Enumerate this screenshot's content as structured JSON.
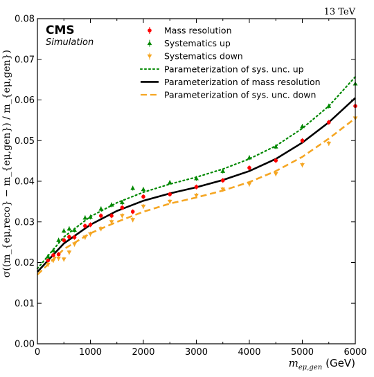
{
  "chart_data": {
    "type": "scatter",
    "energy_label": "13 TeV",
    "experiment": "CMS",
    "subtitle": "Simulation",
    "xlabel_math": "m",
    "xlabel_sub": "eμ,gen",
    "xlabel_unit": "(GeV)",
    "ylabel": "σ((m_{eμ,reco} − m_{eμ,gen}) / m_{eμ,gen})",
    "xlim": [
      0,
      6000
    ],
    "ylim": [
      0.0,
      0.08
    ],
    "xticks": [
      "0",
      "1000",
      "2000",
      "3000",
      "4000",
      "5000",
      "6000"
    ],
    "yticks": [
      "0.00",
      "0.01",
      "0.02",
      "0.03",
      "0.04",
      "0.05",
      "0.06",
      "0.07",
      "0.08"
    ],
    "legend_position": "top-center",
    "series": [
      {
        "name": "Mass resolution",
        "kind": "points",
        "marker": "circle",
        "color": "#ff0000",
        "x": [
          200,
          300,
          400,
          500,
          600,
          700,
          900,
          1000,
          1200,
          1400,
          1600,
          1800,
          2000,
          2500,
          3000,
          3500,
          4000,
          4500,
          5000,
          5500,
          6000
        ],
        "y": [
          0.0205,
          0.0218,
          0.022,
          0.0255,
          0.0263,
          0.0262,
          0.029,
          0.0293,
          0.0315,
          0.0315,
          0.0335,
          0.0325,
          0.0362,
          0.0368,
          0.0386,
          0.0402,
          0.0433,
          0.0451,
          0.05,
          0.0545,
          0.0585
        ]
      },
      {
        "name": "Systematics up",
        "kind": "points",
        "marker": "triangle-up",
        "color": "#008800",
        "x": [
          200,
          300,
          400,
          500,
          600,
          700,
          900,
          1000,
          1200,
          1400,
          1600,
          1800,
          2000,
          2500,
          3000,
          3500,
          4000,
          4500,
          5000,
          5500,
          6000
        ],
        "y": [
          0.0215,
          0.023,
          0.0255,
          0.0278,
          0.0283,
          0.028,
          0.031,
          0.0312,
          0.0332,
          0.0342,
          0.0348,
          0.0383,
          0.038,
          0.0397,
          0.0407,
          0.0425,
          0.0458,
          0.0485,
          0.0535,
          0.0585,
          0.064
        ]
      },
      {
        "name": "Systematics down",
        "kind": "points",
        "marker": "triangle-down",
        "color": "#f5a623",
        "x": [
          200,
          300,
          400,
          500,
          600,
          700,
          900,
          1000,
          1200,
          1400,
          1600,
          1800,
          2000,
          2500,
          3000,
          3500,
          4000,
          4500,
          5000,
          5500,
          6000
        ],
        "y": [
          0.0195,
          0.0205,
          0.021,
          0.0208,
          0.0225,
          0.0245,
          0.0262,
          0.027,
          0.0283,
          0.03,
          0.0315,
          0.0305,
          0.0338,
          0.035,
          0.0365,
          0.038,
          0.0393,
          0.0418,
          0.044,
          0.0493,
          0.0555
        ]
      },
      {
        "name": "Parameterization of sys. unc. up",
        "kind": "curve",
        "style": "dotted",
        "color": "#008800",
        "x": [
          0,
          500,
          1000,
          1500,
          2000,
          2500,
          3000,
          3500,
          4000,
          4500,
          5000,
          5500,
          6000
        ],
        "y": [
          0.0185,
          0.0263,
          0.0313,
          0.0347,
          0.0373,
          0.0393,
          0.041,
          0.043,
          0.0455,
          0.0487,
          0.053,
          0.0585,
          0.0657
        ]
      },
      {
        "name": "Parameterization of mass resolution",
        "kind": "curve",
        "style": "solid",
        "color": "#000000",
        "x": [
          0,
          500,
          1000,
          1500,
          2000,
          2500,
          3000,
          3500,
          4000,
          4500,
          5000,
          5500,
          6000
        ],
        "y": [
          0.0177,
          0.0247,
          0.0293,
          0.0327,
          0.0352,
          0.037,
          0.0385,
          0.0403,
          0.0425,
          0.0455,
          0.0495,
          0.0545,
          0.0605
        ]
      },
      {
        "name": "Parameterization of sys. unc. down",
        "kind": "curve",
        "style": "dashed",
        "color": "#f5a623",
        "x": [
          0,
          500,
          1000,
          1500,
          2000,
          2500,
          3000,
          3500,
          4000,
          4500,
          5000,
          5500,
          6000
        ],
        "y": [
          0.017,
          0.0233,
          0.0272,
          0.03,
          0.0325,
          0.0345,
          0.036,
          0.0377,
          0.0398,
          0.0425,
          0.046,
          0.0505,
          0.0555
        ]
      }
    ]
  }
}
